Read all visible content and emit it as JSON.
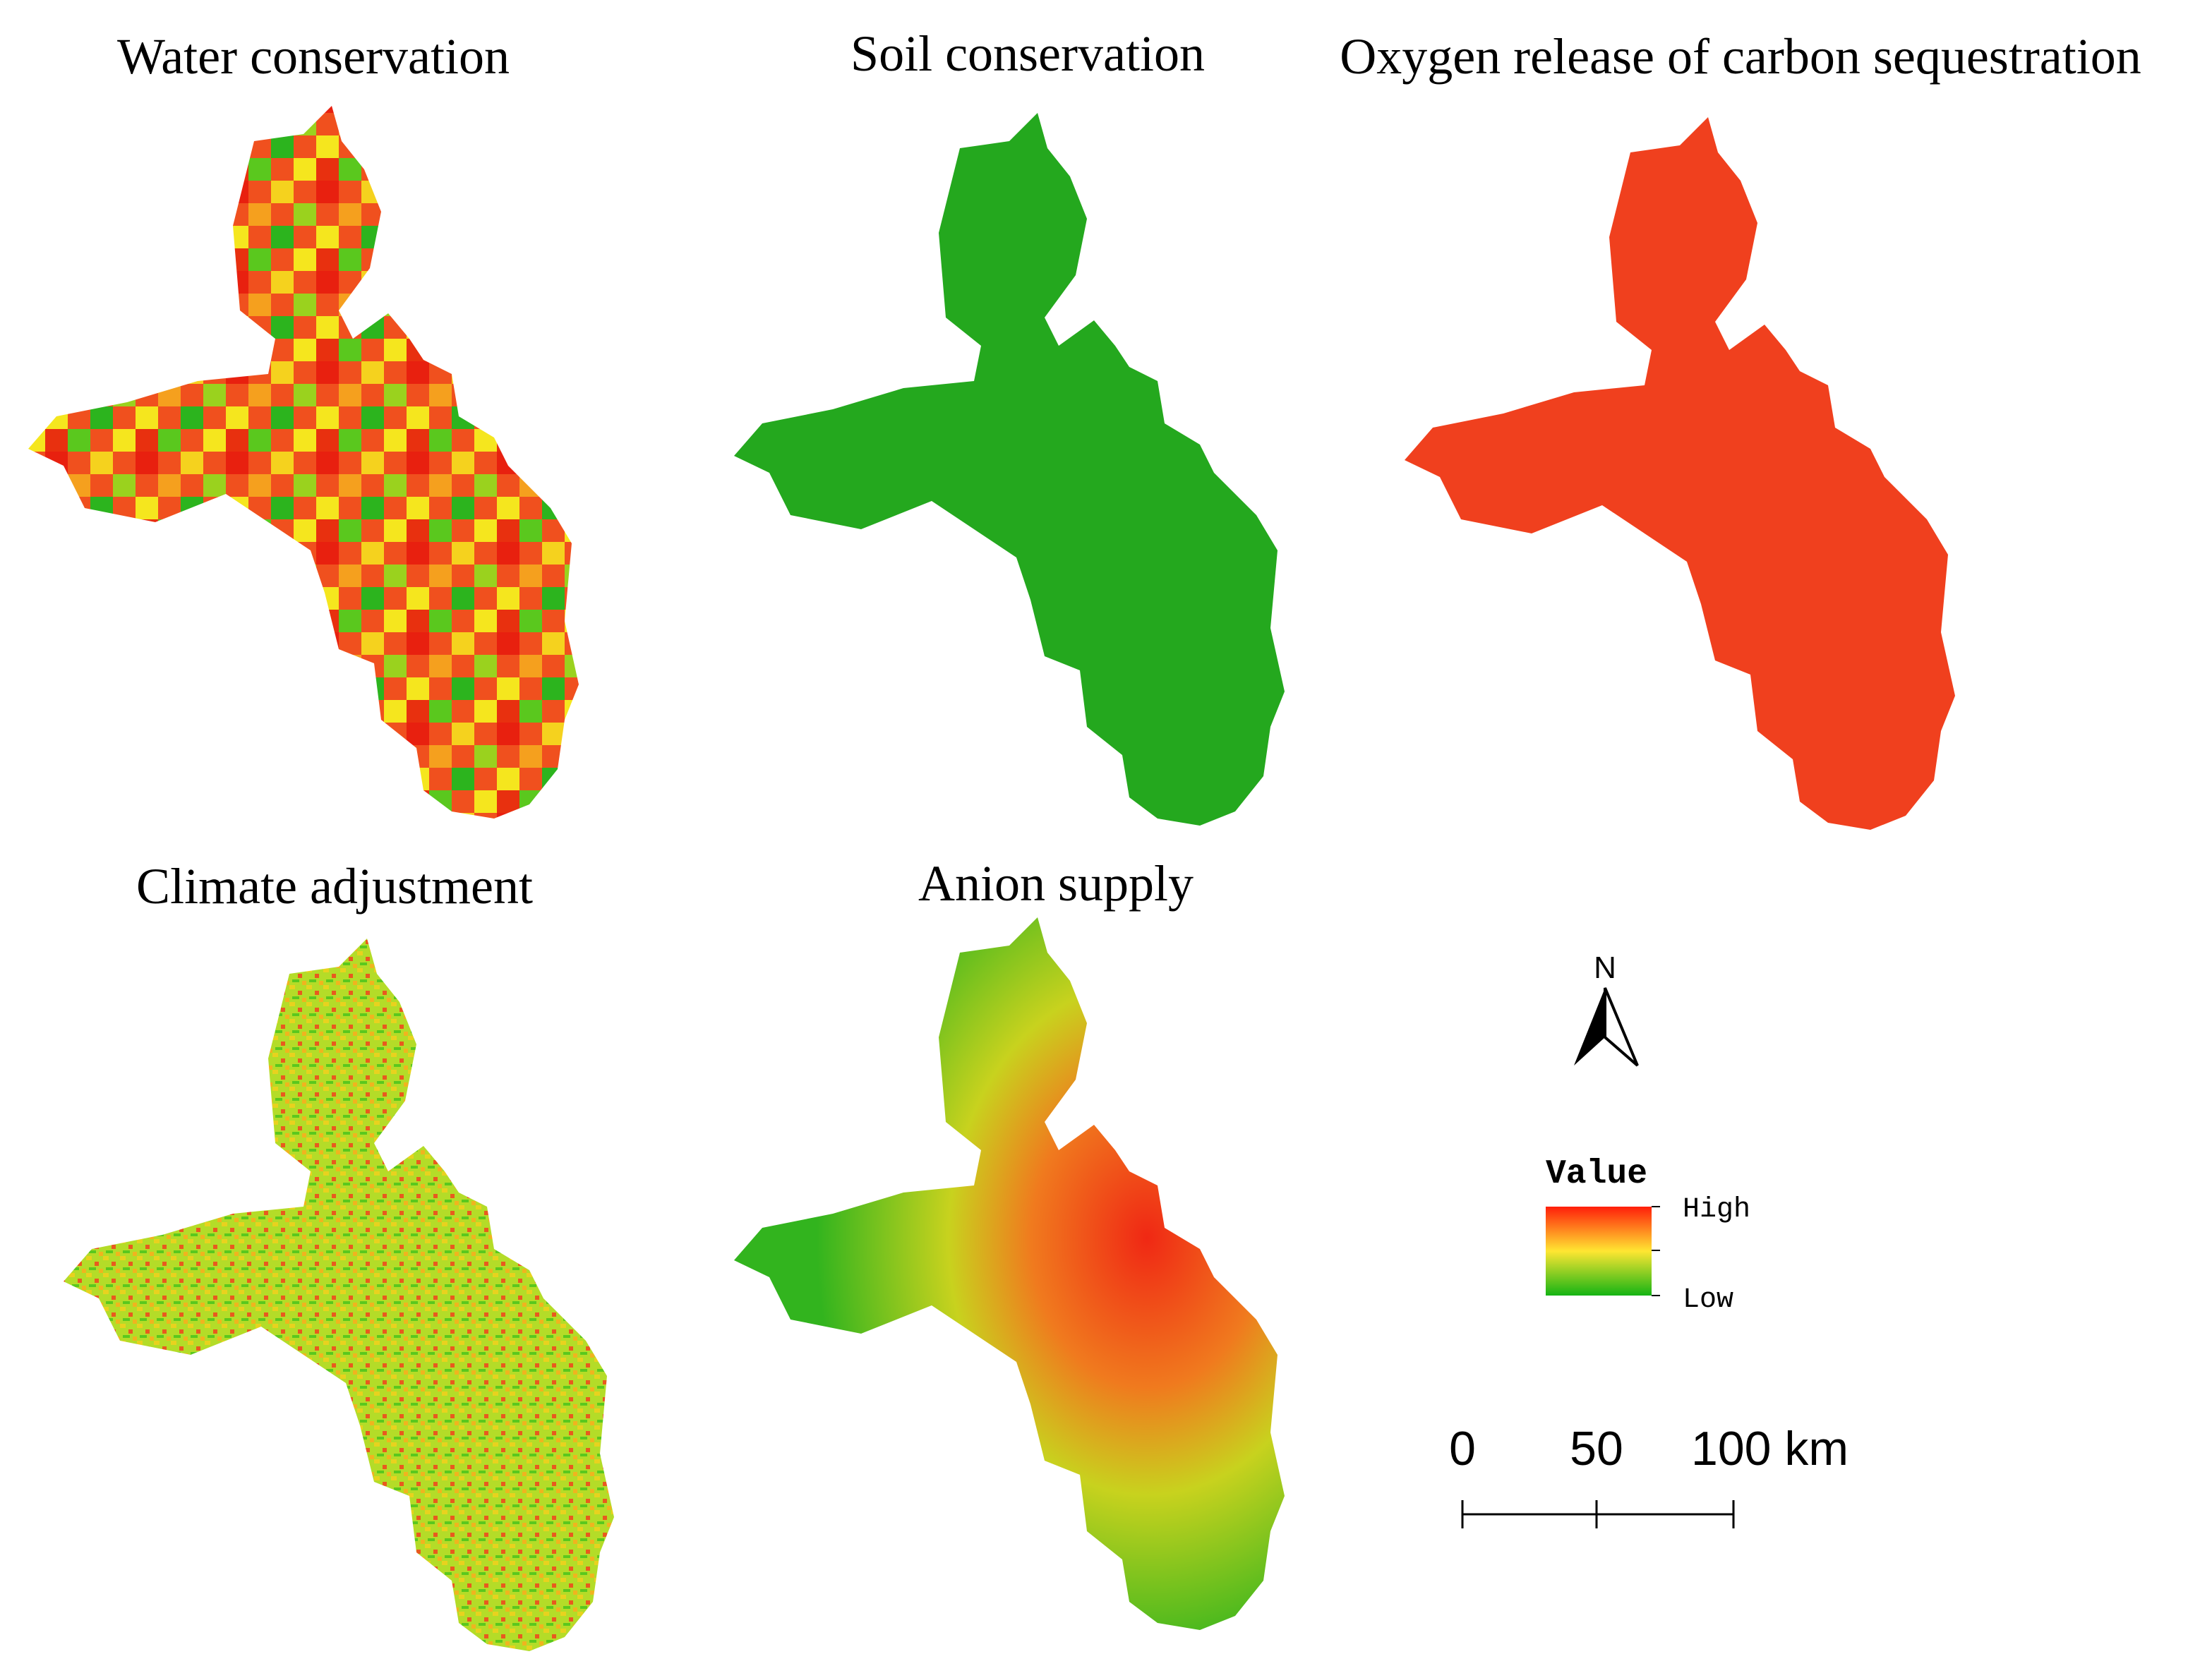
{
  "maps": [
    {
      "title": "Water conservation"
    },
    {
      "title": "Soil conservation"
    },
    {
      "title": "Oxygen release of carbon sequestration"
    },
    {
      "title": "Climate adjustment"
    },
    {
      "title": "Anion supply"
    }
  ],
  "north_arrow": {
    "label": "N"
  },
  "legend": {
    "title": "Value",
    "high": "High",
    "low": "Low"
  },
  "scale_bar": {
    "labels": [
      "0",
      "50",
      "100 km"
    ]
  }
}
